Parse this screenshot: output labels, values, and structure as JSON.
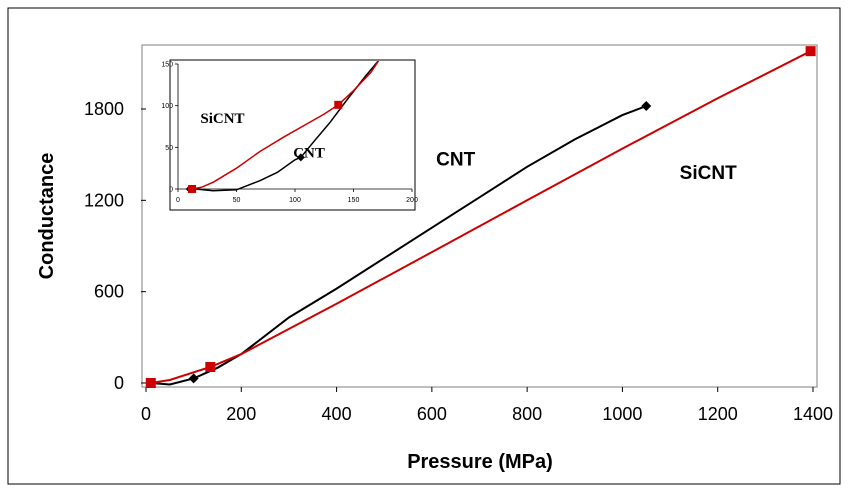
{
  "chart_data": [
    {
      "type": "line",
      "xlabel": "Pressure (MPa)",
      "ylabel": "Conductance",
      "xlim": [
        0,
        1400
      ],
      "ylim": [
        -60,
        2150
      ],
      "xticks": [
        "0",
        "200",
        "400",
        "600",
        "800",
        "1000",
        "1200",
        "1400"
      ],
      "yticks": [
        "0",
        "600",
        "1200",
        "1800"
      ],
      "series": [
        {
          "name": "CNT",
          "color": "#000000",
          "marker": "diamond",
          "x": [
            10,
            50,
            100,
            150,
            200,
            300,
            400,
            500,
            600,
            700,
            800,
            900,
            1000,
            1050
          ],
          "y": [
            0,
            -10,
            30,
            100,
            190,
            430,
            620,
            820,
            1020,
            1220,
            1420,
            1600,
            1760,
            1820
          ],
          "marker_points": [
            [
              10,
              0
            ],
            [
              100,
              30
            ],
            [
              1050,
              1820
            ]
          ]
        },
        {
          "name": "SiCNT",
          "color": "#cc0000",
          "marker": "square",
          "x": [
            10,
            50,
            100,
            135,
            200,
            400,
            600,
            800,
            1000,
            1200,
            1395
          ],
          "y": [
            0,
            20,
            70,
            105,
            190,
            520,
            860,
            1200,
            1540,
            1870,
            2180
          ],
          "marker_points": [
            [
              10,
              0
            ],
            [
              135,
              105
            ],
            [
              1395,
              2180
            ]
          ]
        }
      ],
      "annotations": [
        {
          "text": "CNT",
          "x": 650,
          "y": 1430
        },
        {
          "text": "SiCNT",
          "x": 1180,
          "y": 1340
        }
      ]
    },
    {
      "type": "line",
      "role": "inset",
      "xlim": [
        0,
        200
      ],
      "ylim": [
        0,
        150
      ],
      "xticks": [
        "0",
        "50",
        "100",
        "150",
        "200"
      ],
      "yticks": [
        "0",
        "50",
        "100",
        "150"
      ],
      "series": [
        {
          "name": "CNT",
          "color": "#000000",
          "x": [
            10,
            15,
            30,
            50,
            70,
            85,
            100,
            105,
            115,
            130,
            145,
            160,
            172
          ],
          "y": [
            0,
            0,
            -2,
            -1,
            10,
            20,
            35,
            38,
            55,
            80,
            108,
            135,
            155
          ],
          "marker_points": [
            [
              10,
              0
            ],
            [
              105,
              38
            ]
          ]
        },
        {
          "name": "SiCNT",
          "color": "#cc0000",
          "x": [
            12,
            20,
            30,
            50,
            70,
            90,
            110,
            125,
            137,
            150,
            165,
            172
          ],
          "y": [
            0,
            2,
            8,
            25,
            45,
            62,
            78,
            90,
            101,
            118,
            140,
            155
          ],
          "marker_points": [
            [
              12,
              0
            ],
            [
              137,
              101
            ]
          ]
        }
      ],
      "annotations": [
        {
          "text": "SiCNT",
          "x": 38,
          "y": 79
        },
        {
          "text": "CNT",
          "x": 112,
          "y": 38
        }
      ]
    }
  ]
}
